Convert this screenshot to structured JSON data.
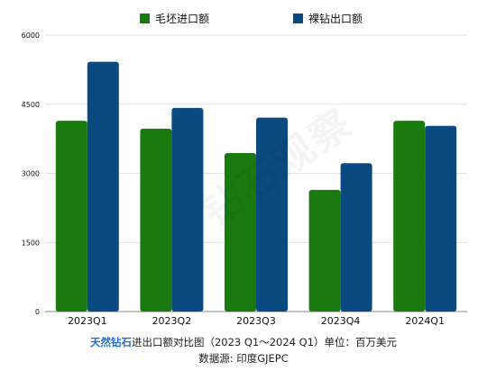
{
  "caption": {
    "brand": "天然钻石",
    "text": "进出口额对比图（2023 Q1～2024 Q1）单位：百万美元",
    "source": "数据源: 印度GJEPC"
  },
  "watermark": "钻石观察",
  "chart_data": {
    "type": "bar",
    "categories": [
      "2023Q1",
      "2023Q2",
      "2023Q3",
      "2023Q4",
      "2024Q1"
    ],
    "series": [
      {
        "name": "毛坯进口额",
        "color": "#1a7a0f",
        "values": [
          4140,
          3970,
          3440,
          2640,
          4140
        ]
      },
      {
        "name": "裸钻出口额",
        "color": "#0b4a80",
        "values": [
          5420,
          4420,
          4210,
          3220,
          4030
        ]
      }
    ],
    "ylim": [
      0,
      6000
    ],
    "yticks": [
      "0",
      "1500",
      "3000",
      "4500",
      "6000"
    ],
    "title": "",
    "xlabel": "",
    "ylabel": "",
    "grid": true,
    "legend": "top-center"
  }
}
